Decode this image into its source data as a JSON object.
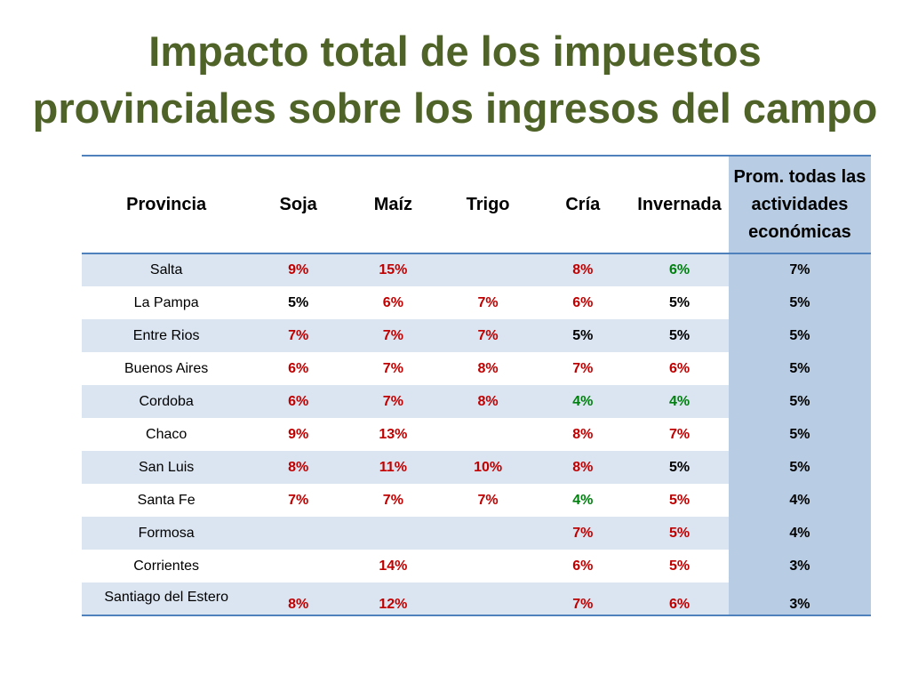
{
  "slide": {
    "title_line1": "Impacto total de los impuestos",
    "title_line2": "provinciales sobre los ingresos del campo"
  },
  "colors": {
    "title": "#4f6228",
    "red": "#c00000",
    "green": "#00800f",
    "row_band": "#dbe5f1",
    "average_column": "#b8cce4",
    "rule": "#4f81bd"
  },
  "table": {
    "headers": {
      "provincia": "Provincia",
      "soja": "Soja",
      "maiz": "Maíz",
      "trigo": "Trigo",
      "cria": "Cría",
      "invernada": "Invernada",
      "avg_line1": "Prom. todas las",
      "avg_line2": "actividades",
      "avg_line3": "económicas"
    },
    "rows": [
      {
        "provincia": "Salta",
        "soja": "9%",
        "maiz": "15%",
        "trigo": "",
        "cria": "8%",
        "invernada": "6%",
        "promedio": "7%",
        "colors": {
          "soja": "red",
          "maiz": "red",
          "trigo": "black",
          "cria": "red",
          "invernada": "green"
        }
      },
      {
        "provincia": "La Pampa",
        "soja": "5%",
        "maiz": "6%",
        "trigo": "7%",
        "cria": "6%",
        "invernada": "5%",
        "promedio": "5%",
        "colors": {
          "soja": "black",
          "maiz": "red",
          "trigo": "red",
          "cria": "red",
          "invernada": "black"
        }
      },
      {
        "provincia": "Entre Rios",
        "soja": "7%",
        "maiz": "7%",
        "trigo": "7%",
        "cria": "5%",
        "invernada": "5%",
        "promedio": "5%",
        "colors": {
          "soja": "red",
          "maiz": "red",
          "trigo": "red",
          "cria": "black",
          "invernada": "black"
        }
      },
      {
        "provincia": "Buenos Aires",
        "soja": "6%",
        "maiz": "7%",
        "trigo": "8%",
        "cria": "7%",
        "invernada": "6%",
        "promedio": "5%",
        "colors": {
          "soja": "red",
          "maiz": "red",
          "trigo": "red",
          "cria": "red",
          "invernada": "red"
        }
      },
      {
        "provincia": "Cordoba",
        "soja": "6%",
        "maiz": "7%",
        "trigo": "8%",
        "cria": "4%",
        "invernada": "4%",
        "promedio": "5%",
        "colors": {
          "soja": "red",
          "maiz": "red",
          "trigo": "red",
          "cria": "green",
          "invernada": "green"
        }
      },
      {
        "provincia": "Chaco",
        "soja": "9%",
        "maiz": "13%",
        "trigo": "",
        "cria": "8%",
        "invernada": "7%",
        "promedio": "5%",
        "colors": {
          "soja": "red",
          "maiz": "red",
          "trigo": "black",
          "cria": "red",
          "invernada": "red"
        }
      },
      {
        "provincia": "San Luis",
        "soja": "8%",
        "maiz": "11%",
        "trigo": "10%",
        "cria": "8%",
        "invernada": "5%",
        "promedio": "5%",
        "colors": {
          "soja": "red",
          "maiz": "red",
          "trigo": "red",
          "cria": "red",
          "invernada": "black"
        }
      },
      {
        "provincia": "Santa Fe",
        "soja": "7%",
        "maiz": "7%",
        "trigo": "7%",
        "cria": "4%",
        "invernada": "5%",
        "promedio": "4%",
        "colors": {
          "soja": "red",
          "maiz": "red",
          "trigo": "red",
          "cria": "green",
          "invernada": "red"
        }
      },
      {
        "provincia": "Formosa",
        "soja": "",
        "maiz": "",
        "trigo": "",
        "cria": "7%",
        "invernada": "5%",
        "promedio": "4%",
        "colors": {
          "soja": "black",
          "maiz": "black",
          "trigo": "black",
          "cria": "red",
          "invernada": "red"
        }
      },
      {
        "provincia": "Corrientes",
        "soja": "",
        "maiz": "14%",
        "trigo": "",
        "cria": "6%",
        "invernada": "5%",
        "promedio": "3%",
        "colors": {
          "soja": "black",
          "maiz": "red",
          "trigo": "black",
          "cria": "red",
          "invernada": "red"
        }
      },
      {
        "provincia": "Santiago del Estero",
        "soja": "8%",
        "maiz": "12%",
        "trigo": "",
        "cria": "7%",
        "invernada": "6%",
        "promedio": "3%",
        "colors": {
          "soja": "red",
          "maiz": "red",
          "trigo": "black",
          "cria": "red",
          "invernada": "red"
        }
      }
    ]
  }
}
